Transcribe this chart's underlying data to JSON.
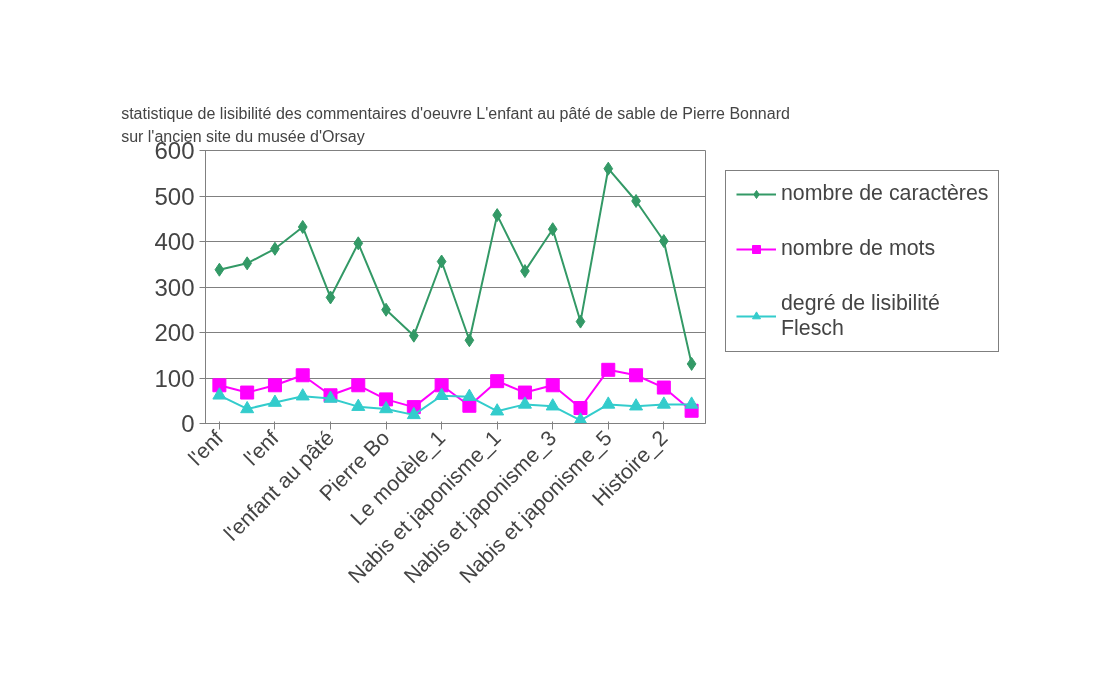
{
  "chart_data": {
    "type": "line",
    "title": "statistique de lisibilité des commentaires d'oeuvre L'enfant au pâté de sable de Pierre Bonnard sur l'ancien site du musée d'Orsay",
    "categories": [
      "l'enf",
      null,
      "l'enf",
      null,
      "l'enfant au pâté",
      null,
      "Pierre Bo",
      null,
      "Le modèle_1",
      null,
      "Nabis et japonisme_1",
      null,
      "Nabis et japonisme_3",
      null,
      "Nabis et japonisme_5",
      null,
      "Histoire_2",
      null
    ],
    "series": [
      {
        "name": "nombre de caractères",
        "color": "#339966",
        "marker": "diamond",
        "values": [
          338,
          352,
          384,
          432,
          277,
          396,
          250,
          193,
          356,
          183,
          458,
          335,
          427,
          224,
          560,
          489,
          401,
          131
        ]
      },
      {
        "name": "nombre de mots",
        "color": "#ff00ff",
        "marker": "square",
        "values": [
          84,
          68,
          84,
          106,
          62,
          84,
          53,
          36,
          84,
          39,
          93,
          68,
          84,
          34,
          118,
          106,
          79,
          28
        ]
      },
      {
        "name": "degré de lisibilité Flesch",
        "color": "#33cccc",
        "marker": "triangle",
        "values": [
          62,
          32,
          46,
          60,
          55,
          37,
          32,
          19,
          61,
          59,
          27,
          42,
          38,
          7,
          42,
          38,
          42,
          42
        ]
      }
    ],
    "ylim": [
      0,
      600
    ],
    "yticks": [
      0,
      100,
      200,
      300,
      400,
      500,
      600
    ],
    "grid": "y",
    "legend": "right",
    "line_style": "solid"
  }
}
